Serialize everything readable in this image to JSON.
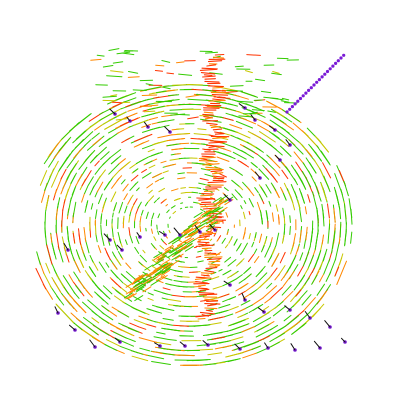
{
  "figure": {
    "kind": "vortex-streamline-plot",
    "background": "#ffffff",
    "colors": {
      "green": "#33cc00",
      "yellow": "#c8c800",
      "orange": "#ff8800",
      "red": "#ff3300",
      "purple": "#7a1bd6",
      "dark": "#111111"
    }
  }
}
